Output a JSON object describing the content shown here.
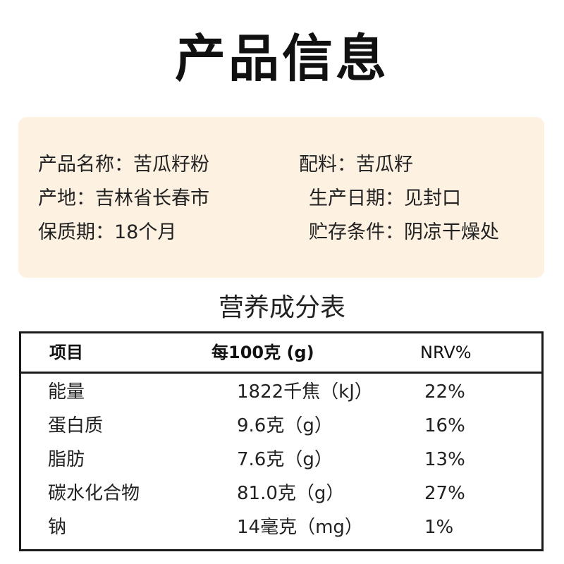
{
  "page_title": "产品信息",
  "product_info": {
    "name": "产品名称：苦瓜籽粉",
    "ingredients": "配料：苦瓜籽",
    "origin": "产地：吉林省长春市",
    "production_date": "生产日期：见封口",
    "shelf_life": "保质期：18个月",
    "storage": "贮存条件：阴凉干燥处"
  },
  "nutrition": {
    "title": "营养成分表",
    "headers": {
      "item": "项目",
      "per_100g": "每100克 (g)",
      "nrv": "NRV%"
    },
    "rows": [
      {
        "name": "能量",
        "value": "1822千焦（kJ）",
        "nrv": "22%"
      },
      {
        "name": "蛋白质",
        "value": "9.6克（g）",
        "nrv": "16%"
      },
      {
        "name": "脂肪",
        "value": "7.6克（g）",
        "nrv": "13%"
      },
      {
        "name": "碳水化合物",
        "value": "81.0克（g）",
        "nrv": "27%"
      },
      {
        "name": "钠",
        "value": "14毫克（mg）",
        "nrv": "1%"
      }
    ]
  },
  "colors": {
    "card_background": "#fdf1e1",
    "border": "#1a1a1a",
    "text": "#222222"
  }
}
